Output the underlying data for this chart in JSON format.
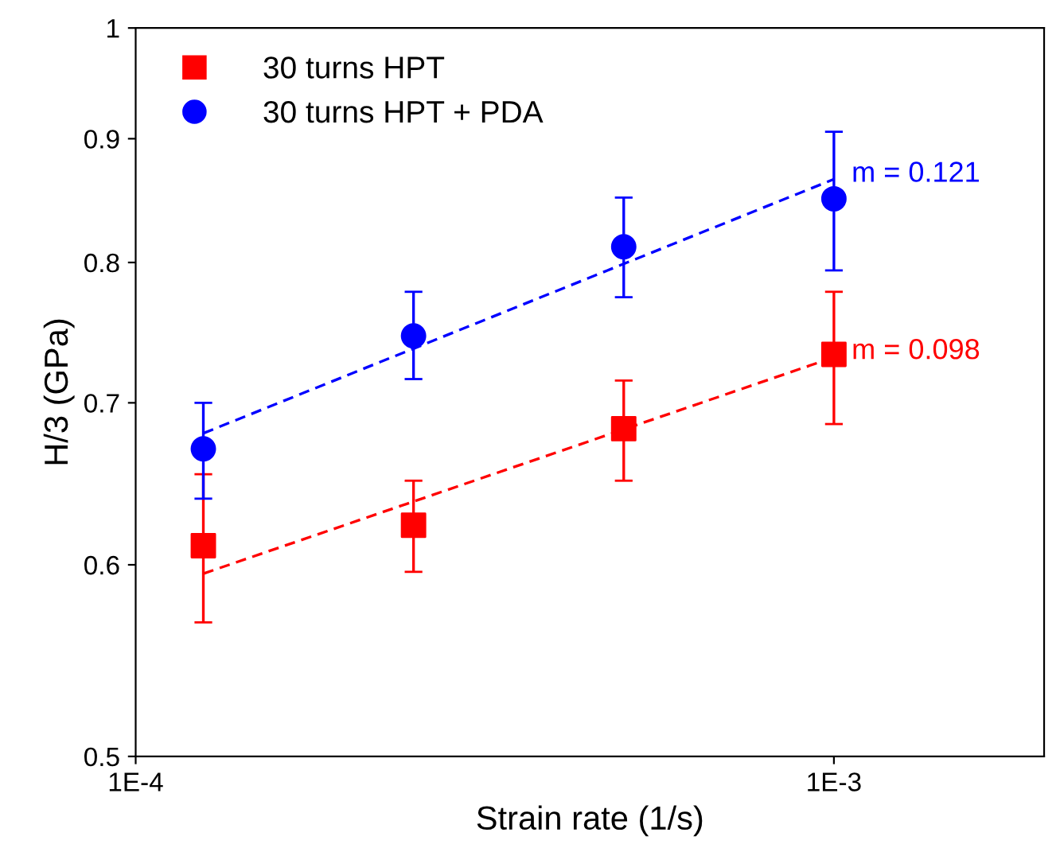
{
  "chart_data": {
    "type": "scatter",
    "xlabel": "Strain rate (1/s)",
    "ylabel": "H/3 (GPa)",
    "log": "xy",
    "xlim": [
      0.0001,
      0.002
    ],
    "xticks": [
      {
        "value": 0.0001,
        "label": "1E-4"
      },
      {
        "value": 0.001,
        "label": "1E-3"
      }
    ],
    "ylim": [
      0.5,
      1
    ],
    "yticks": [
      0.5,
      0.6,
      0.7,
      0.8,
      0.9,
      1
    ],
    "grid": false,
    "legend": "top left",
    "series": [
      {
        "name": "30 turns HPT",
        "color": "#ff0000",
        "marker": "square",
        "x": [
          0.000125,
          0.00025,
          0.0005,
          0.001
        ],
        "values": [
          0.611,
          0.623,
          0.683,
          0.733
        ],
        "errors": [
          [
            0.568,
            0.654
          ],
          [
            0.596,
            0.65
          ],
          [
            0.65,
            0.715
          ],
          [
            0.686,
            0.778
          ]
        ]
      },
      {
        "name": "30 turns HPT + PDA",
        "color": "#0000ff",
        "marker": "circle",
        "x": [
          0.000125,
          0.00025,
          0.0005,
          0.001
        ],
        "values": [
          0.67,
          0.746,
          0.812,
          0.85
        ],
        "errors": [
          [
            0.639,
            0.7
          ],
          [
            0.716,
            0.778
          ],
          [
            0.774,
            0.851
          ],
          [
            0.794,
            0.906
          ]
        ]
      },
      {
        "type": "line",
        "color": "#ff0000",
        "line_style": "dashed",
        "marker": "none",
        "x": [
          0.000125,
          0.001
        ],
        "values": [
          0.595,
          0.731
        ]
      },
      {
        "type": "line",
        "color": "#0000ff",
        "line_style": "dashed",
        "marker": "none",
        "x": [
          0.000125,
          0.001
        ],
        "values": [
          0.68,
          0.866
        ]
      }
    ],
    "annotations": [
      {
        "text": "m = 0.098",
        "x": 0.001,
        "y": 0.735
      },
      {
        "text": "m = 0.121",
        "x": 0.001,
        "y": 0.87
      }
    ]
  }
}
